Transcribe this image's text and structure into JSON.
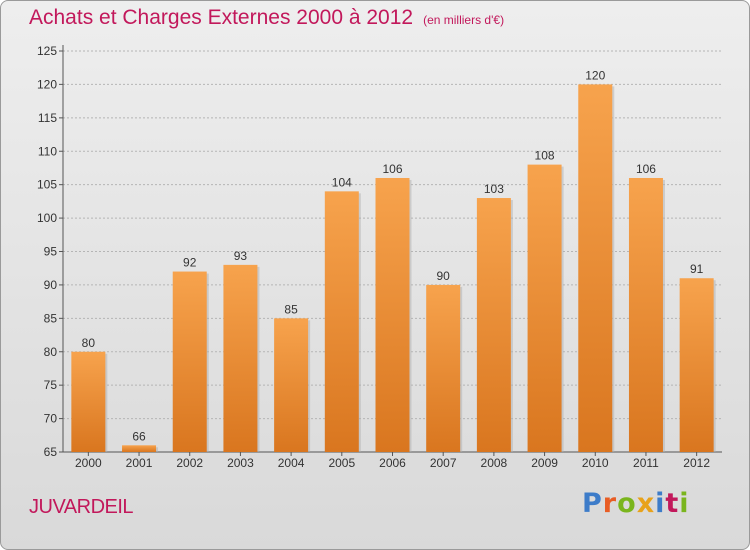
{
  "header": {
    "title": "Achats et Charges Externes 2000 à 2012",
    "subtitle": "(en milliers d'€)"
  },
  "footer": {
    "place": "JUVARDEIL",
    "logo": "Proxiti"
  },
  "colors": {
    "title": "#c2185b",
    "bar_light": "#f7a34d",
    "bar_dark": "#d9761f",
    "grid": "#b5b5b5",
    "logo_letters": [
      "#3d7cc9",
      "#e85d24",
      "#7ab51d",
      "#e8a21a",
      "#3d7cc9",
      "#c2185b",
      "#7ab51d"
    ]
  },
  "chart_data": {
    "type": "bar",
    "categories": [
      "2000",
      "2001",
      "2002",
      "2003",
      "2004",
      "2005",
      "2006",
      "2007",
      "2008",
      "2009",
      "2010",
      "2011",
      "2012"
    ],
    "values": [
      80,
      66,
      92,
      93,
      85,
      104,
      106,
      90,
      103,
      108,
      120,
      106,
      91
    ],
    "ylim": [
      65,
      125
    ],
    "yticks": [
      65,
      70,
      75,
      80,
      85,
      90,
      95,
      100,
      105,
      110,
      115,
      120,
      125
    ],
    "xlabel": "",
    "ylabel": "",
    "grid": true,
    "data_labels": true
  }
}
